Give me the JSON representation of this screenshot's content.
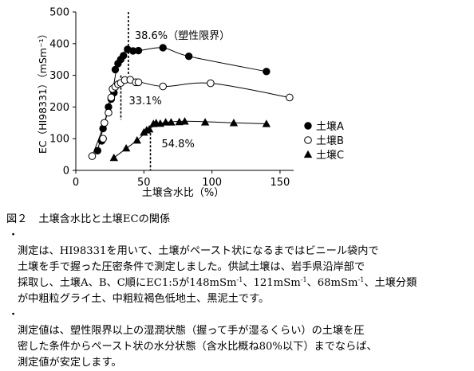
{
  "chart_data": {
    "type": "scatter",
    "xlabel": "土壌含水比（%）",
    "ylabel": "EC（HI98331）（mSm⁻¹）",
    "xlim": [
      0,
      160
    ],
    "ylim": [
      0,
      500
    ],
    "x_ticks": [
      "0",
      "50",
      "100",
      "150"
    ],
    "y_ticks": [
      "0",
      "100",
      "200",
      "300",
      "400",
      "500"
    ],
    "grid": false,
    "legend_position": "right",
    "series": [
      {
        "name": "土壌A",
        "marker": "filled-circle",
        "color": "#000000",
        "points": [
          [
            16,
            62
          ],
          [
            19,
            93
          ],
          [
            20,
            132
          ],
          [
            24,
            200
          ],
          [
            26,
            225
          ],
          [
            28,
            245
          ],
          [
            29,
            318
          ],
          [
            31,
            337
          ],
          [
            33,
            350
          ],
          [
            35,
            362
          ],
          [
            38,
            382
          ],
          [
            42,
            377
          ],
          [
            46,
            378
          ],
          [
            64,
            387
          ],
          [
            83,
            360
          ],
          [
            140,
            312
          ]
        ]
      },
      {
        "name": "土壌B",
        "marker": "open-circle",
        "color": "#000000",
        "points": [
          [
            12,
            45
          ],
          [
            20,
            100
          ],
          [
            21,
            150
          ],
          [
            24,
            182
          ],
          [
            26,
            230
          ],
          [
            27,
            257
          ],
          [
            29,
            264
          ],
          [
            31,
            272
          ],
          [
            33,
            276
          ],
          [
            36,
            285
          ],
          [
            40,
            286
          ],
          [
            44,
            278
          ],
          [
            46,
            278
          ],
          [
            64,
            265
          ],
          [
            99,
            275
          ],
          [
            157,
            230
          ]
        ]
      },
      {
        "name": "土壌C",
        "marker": "filled-triangle",
        "color": "#000000",
        "points": [
          [
            28,
            40
          ],
          [
            37,
            70
          ],
          [
            45,
            95
          ],
          [
            50,
            120
          ],
          [
            52,
            127
          ],
          [
            54,
            130
          ],
          [
            57,
            147
          ],
          [
            59,
            150
          ],
          [
            62,
            148
          ],
          [
            66,
            152
          ],
          [
            70,
            152
          ],
          [
            76,
            153
          ],
          [
            80,
            155
          ],
          [
            95,
            152
          ],
          [
            116,
            150
          ],
          [
            140,
            147
          ]
        ]
      }
    ],
    "reference_lines": [
      {
        "x": 38.6,
        "label": "38.6%（塑性限界）"
      },
      {
        "x": 33.1,
        "label": "33.1%"
      },
      {
        "x": 54.8,
        "label": "54.8%"
      }
    ],
    "curve_points": [
      [
        [
          16,
          62
        ],
        [
          20,
          132
        ],
        [
          26,
          225
        ],
        [
          31,
          337
        ],
        [
          38,
          382
        ],
        [
          46,
          378
        ],
        [
          64,
          387
        ],
        [
          83,
          360
        ],
        [
          140,
          312
        ]
      ],
      [
        [
          12,
          45
        ],
        [
          21,
          150
        ],
        [
          27,
          257
        ],
        [
          33,
          276
        ],
        [
          40,
          286
        ],
        [
          64,
          265
        ],
        [
          99,
          275
        ],
        [
          157,
          230
        ]
      ],
      [
        [
          28,
          40
        ],
        [
          45,
          95
        ],
        [
          54,
          130
        ],
        [
          62,
          148
        ],
        [
          80,
          155
        ],
        [
          116,
          150
        ],
        [
          140,
          147
        ]
      ]
    ]
  },
  "caption": {
    "fig_no": "図２",
    "title": "土壌含水比と土壌ECの関係",
    "notes": [
      {
        "bullet": "・",
        "text_1": "測定は、HI98331を用いて、土壌がペースト状になるまではビニール袋内で\n土壌を手で握った圧密条件で測定しました。供試土壌は、岩手県沿岸部で\n採取し、土壌A、B、C順にEC1:5が148mSm",
        "sup_1": "-1",
        "text_2": "、121mSm",
        "sup_2": "-1",
        "text_3": "、68mSm",
        "sup_3": "-1",
        "text_4": "、土壌分類\nが中粗粒グライ土、中粗粒褐色低地土、黒泥土です。"
      },
      {
        "bullet": "・",
        "text": "測定値は、塑性限界以上の湿潤状態（握って手が湿るくらい）の土壌を圧\n密した条件からペースト状の水分状態（含水比概ね80%以下）までならば、\n測定値が安定します。"
      }
    ]
  }
}
